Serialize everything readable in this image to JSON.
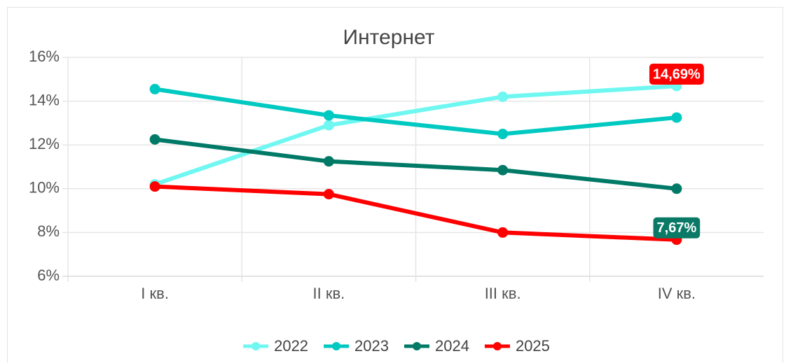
{
  "chart_data": {
    "type": "line",
    "title": "Интернет",
    "categories": [
      "I кв.",
      "II кв.",
      "III кв.",
      "IV кв."
    ],
    "series": [
      {
        "name": "2022",
        "color": "#6ff7f1",
        "values": [
          10.2,
          12.9,
          14.2,
          14.69
        ],
        "value_labels": [
          null,
          null,
          null,
          "14,69%"
        ],
        "label_color": "#ff0000"
      },
      {
        "name": "2023",
        "color": "#00c9c1",
        "values": [
          14.55,
          13.35,
          12.5,
          13.25
        ]
      },
      {
        "name": "2024",
        "color": "#007a67",
        "values": [
          12.25,
          11.25,
          10.85,
          10.0
        ]
      },
      {
        "name": "2025",
        "color": "#ff0000",
        "values": [
          10.1,
          9.75,
          8.0,
          7.67
        ],
        "value_labels": [
          null,
          null,
          null,
          "7,67%"
        ],
        "label_color": "#0a7a67"
      }
    ],
    "ylim": [
      6,
      16
    ],
    "yticks": [
      {
        "value": 6,
        "label": "6%"
      },
      {
        "value": 8,
        "label": "8%"
      },
      {
        "value": 10,
        "label": "10%"
      },
      {
        "value": 12,
        "label": "12%"
      },
      {
        "value": 14,
        "label": "14%"
      },
      {
        "value": 16,
        "label": "16%"
      }
    ],
    "grid": true,
    "legend": "bottom"
  }
}
